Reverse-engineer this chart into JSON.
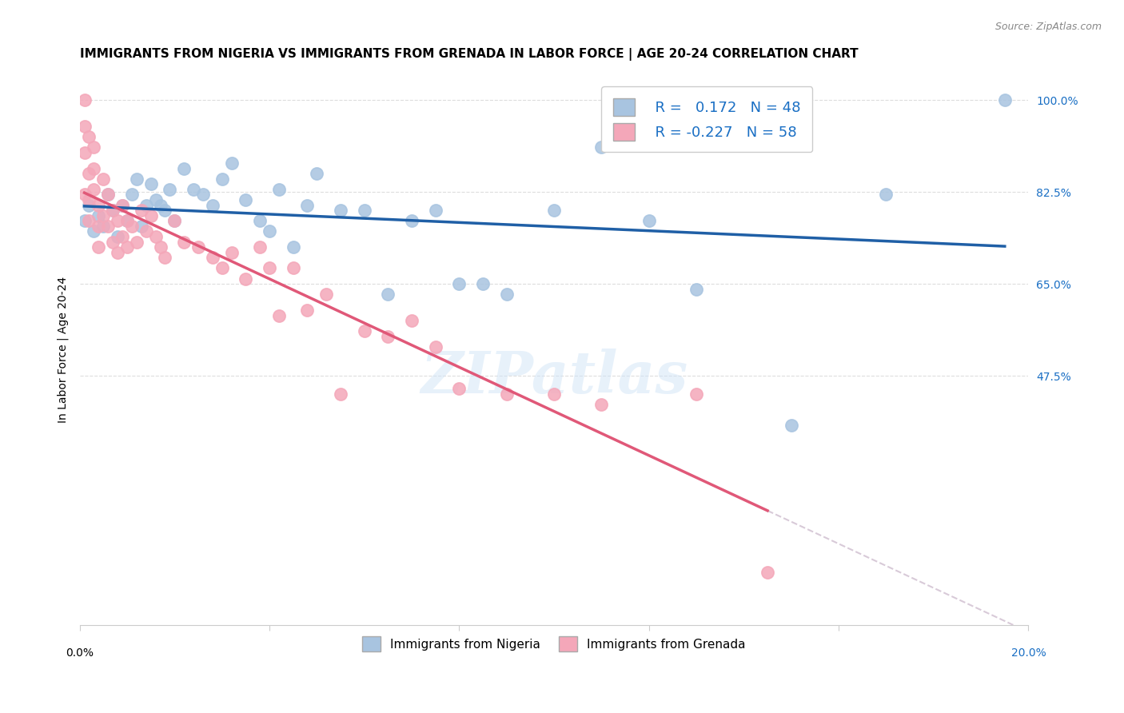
{
  "title": "IMMIGRANTS FROM NIGERIA VS IMMIGRANTS FROM GRENADA IN LABOR FORCE | AGE 20-24 CORRELATION CHART",
  "source": "Source: ZipAtlas.com",
  "ylabel": "In Labor Force | Age 20-24",
  "xlim": [
    0.0,
    0.2
  ],
  "ylim": [
    0.0,
    1.05
  ],
  "watermark": "ZIPatlas",
  "legend_r_nigeria": "0.172",
  "legend_n_nigeria": "48",
  "legend_r_grenada": "-0.227",
  "legend_n_grenada": "58",
  "nigeria_color": "#a8c4e0",
  "grenada_color": "#f4a7b9",
  "nigeria_line_color": "#1f5fa6",
  "grenada_line_color": "#e05878",
  "grenada_line_dash": "#c8b4c8",
  "nigeria_points_x": [
    0.001,
    0.002,
    0.003,
    0.004,
    0.005,
    0.006,
    0.007,
    0.008,
    0.009,
    0.01,
    0.011,
    0.012,
    0.013,
    0.014,
    0.015,
    0.016,
    0.017,
    0.018,
    0.019,
    0.02,
    0.022,
    0.024,
    0.026,
    0.028,
    0.03,
    0.032,
    0.035,
    0.038,
    0.04,
    0.042,
    0.045,
    0.048,
    0.05,
    0.055,
    0.06,
    0.065,
    0.07,
    0.075,
    0.08,
    0.085,
    0.09,
    0.1,
    0.11,
    0.12,
    0.13,
    0.15,
    0.17,
    0.195
  ],
  "nigeria_points_y": [
    0.77,
    0.8,
    0.75,
    0.78,
    0.76,
    0.82,
    0.79,
    0.74,
    0.8,
    0.77,
    0.82,
    0.85,
    0.76,
    0.8,
    0.84,
    0.81,
    0.8,
    0.79,
    0.83,
    0.77,
    0.87,
    0.83,
    0.82,
    0.8,
    0.85,
    0.88,
    0.81,
    0.77,
    0.75,
    0.83,
    0.72,
    0.8,
    0.86,
    0.79,
    0.79,
    0.63,
    0.77,
    0.79,
    0.65,
    0.65,
    0.63,
    0.79,
    0.91,
    0.77,
    0.64,
    0.38,
    0.82,
    1.0
  ],
  "grenada_points_x": [
    0.001,
    0.001,
    0.001,
    0.001,
    0.002,
    0.002,
    0.002,
    0.002,
    0.003,
    0.003,
    0.003,
    0.004,
    0.004,
    0.004,
    0.005,
    0.005,
    0.006,
    0.006,
    0.007,
    0.007,
    0.008,
    0.008,
    0.009,
    0.009,
    0.01,
    0.01,
    0.011,
    0.012,
    0.013,
    0.014,
    0.015,
    0.016,
    0.017,
    0.018,
    0.02,
    0.022,
    0.025,
    0.028,
    0.03,
    0.032,
    0.035,
    0.038,
    0.04,
    0.042,
    0.045,
    0.048,
    0.052,
    0.055,
    0.06,
    0.065,
    0.07,
    0.075,
    0.08,
    0.09,
    0.1,
    0.11,
    0.13,
    0.145
  ],
  "grenada_points_y": [
    1.0,
    0.95,
    0.9,
    0.82,
    0.93,
    0.86,
    0.81,
    0.77,
    0.91,
    0.87,
    0.83,
    0.8,
    0.76,
    0.72,
    0.85,
    0.78,
    0.82,
    0.76,
    0.79,
    0.73,
    0.77,
    0.71,
    0.8,
    0.74,
    0.77,
    0.72,
    0.76,
    0.73,
    0.79,
    0.75,
    0.78,
    0.74,
    0.72,
    0.7,
    0.77,
    0.73,
    0.72,
    0.7,
    0.68,
    0.71,
    0.66,
    0.72,
    0.68,
    0.59,
    0.68,
    0.6,
    0.63,
    0.44,
    0.56,
    0.55,
    0.58,
    0.53,
    0.45,
    0.44,
    0.44,
    0.42,
    0.44,
    0.1
  ],
  "background_color": "#ffffff",
  "grid_color": "#dddddd",
  "ytick_vals": [
    0.475,
    0.65,
    0.825,
    1.0
  ],
  "ytick_labels": [
    "47.5%",
    "65.0%",
    "82.5%",
    "100.0%"
  ],
  "xtick_vals": [
    0.0,
    0.04,
    0.08,
    0.12,
    0.16,
    0.2
  ]
}
